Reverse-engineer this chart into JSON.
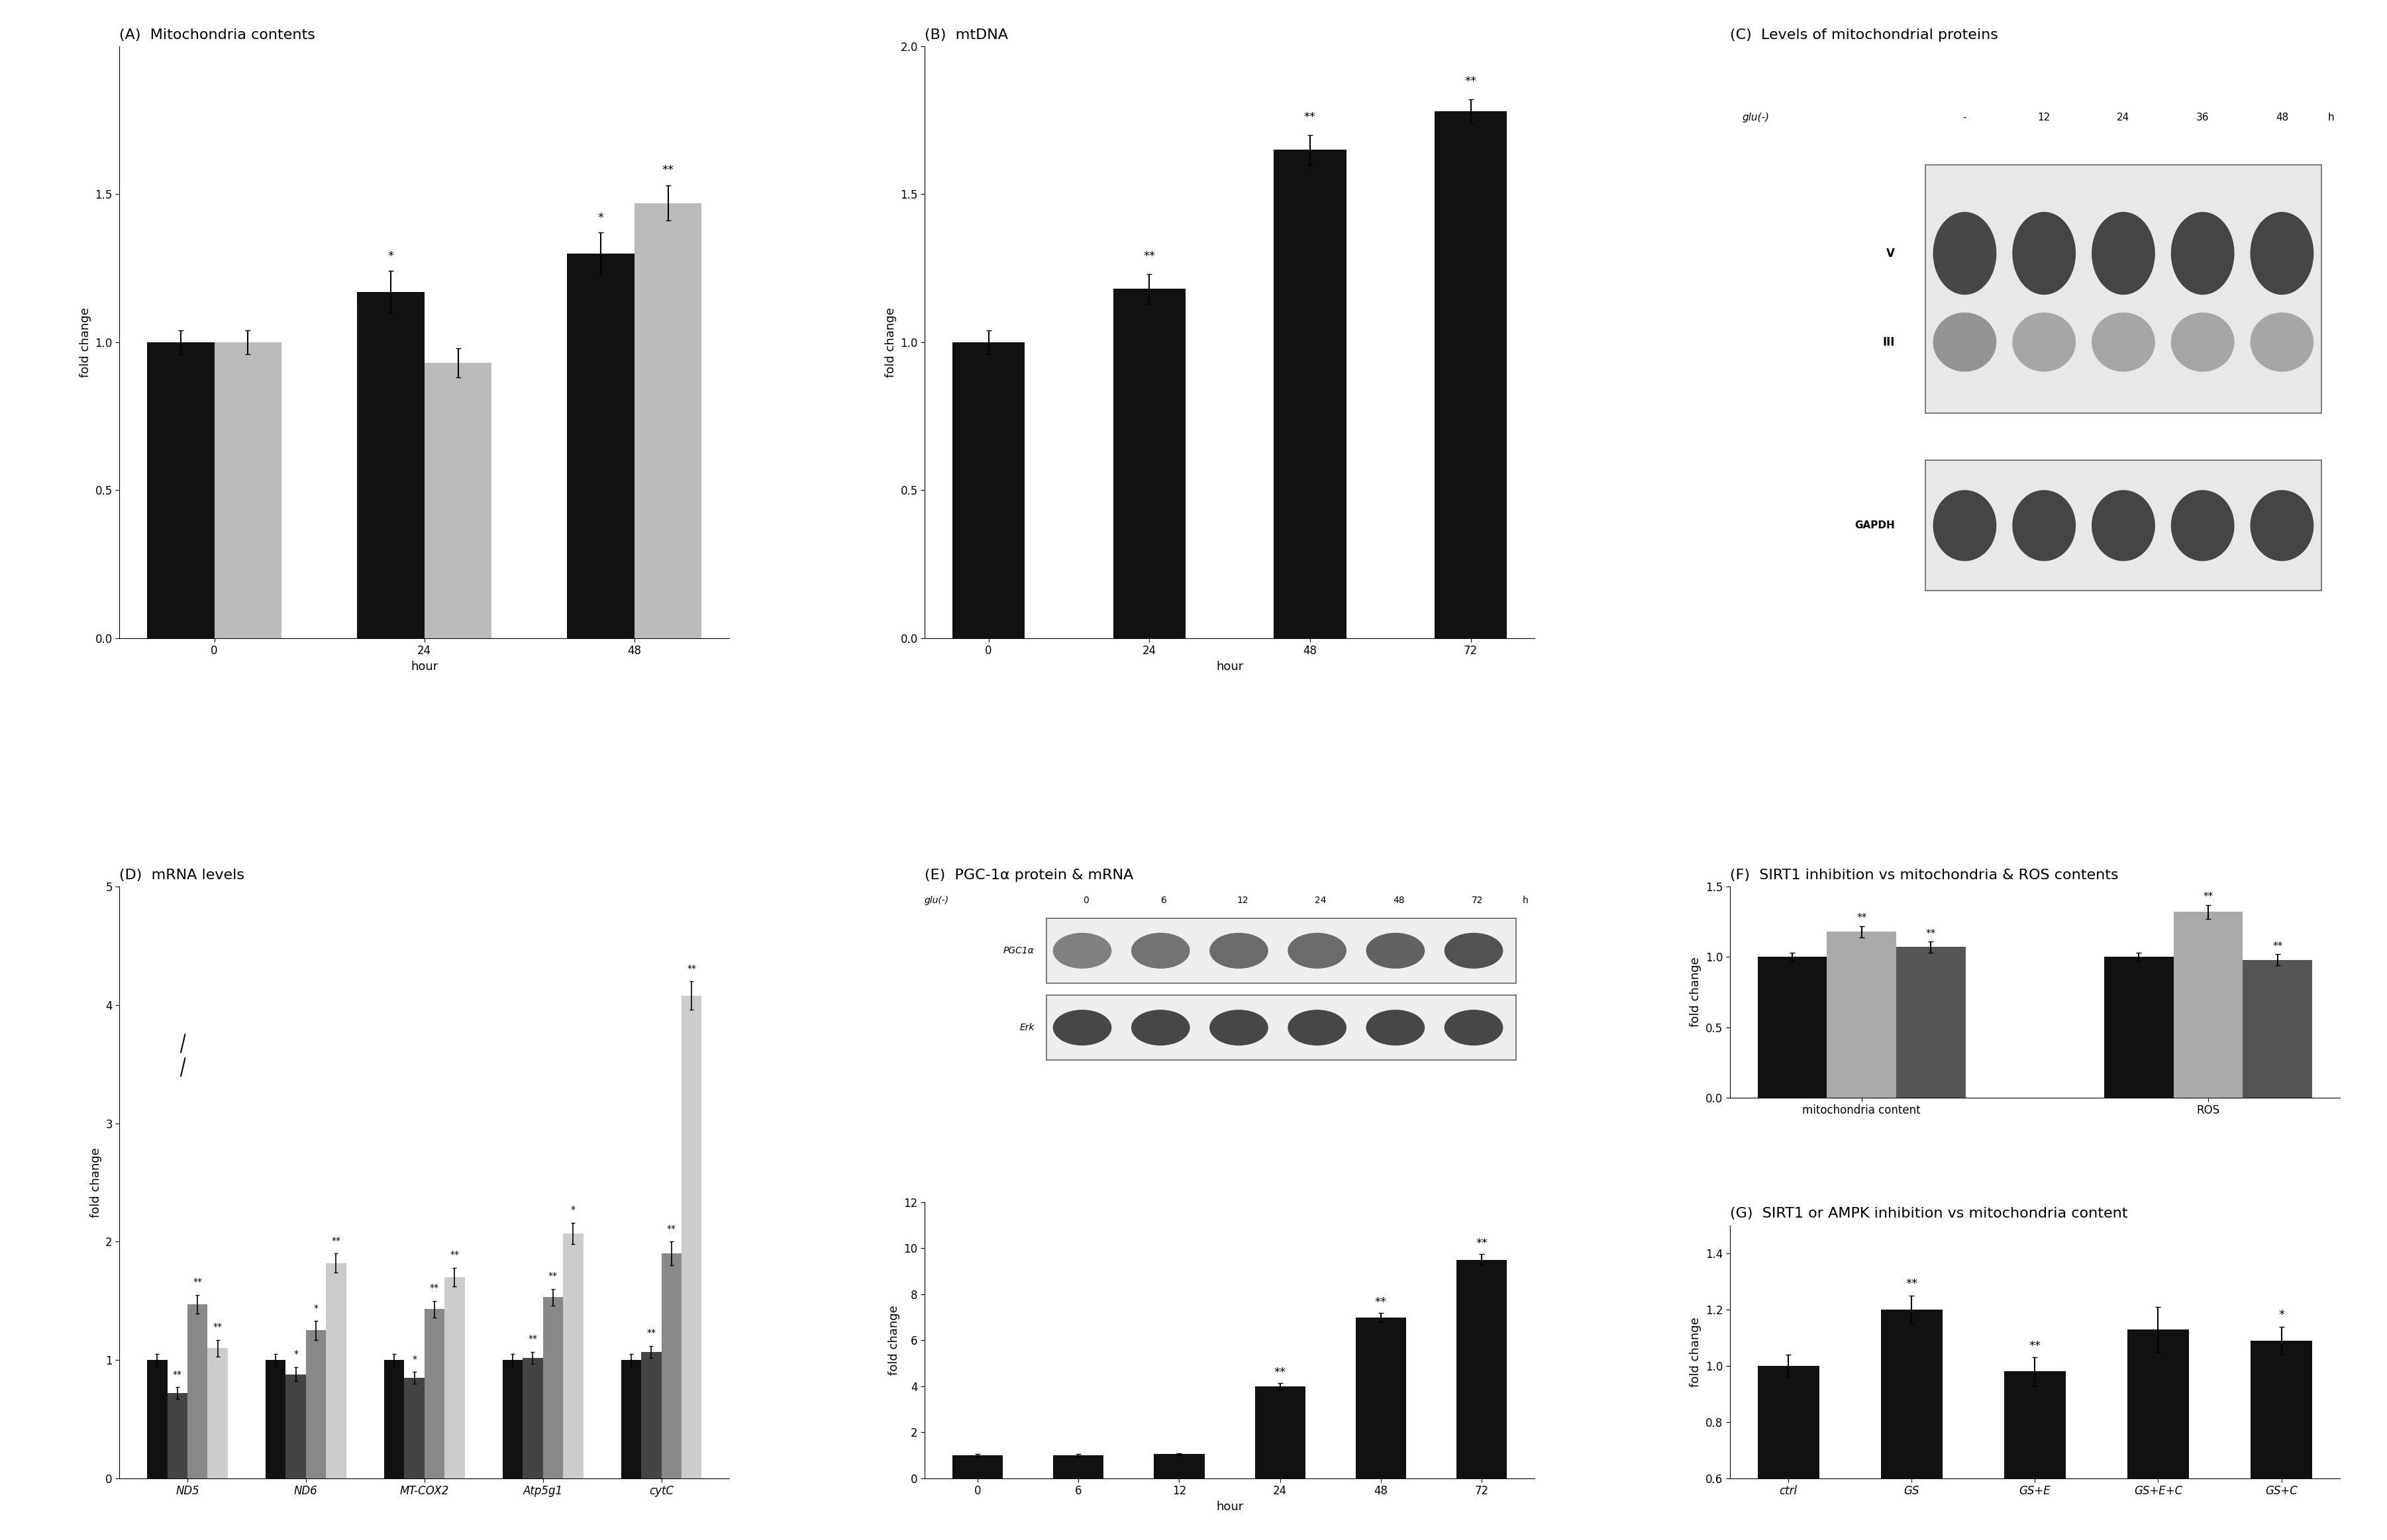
{
  "figsize": [
    36.05,
    23.26
  ],
  "background_color": "#ffffff",
  "panel_A": {
    "title": "(A)  Mitochondria contents",
    "xlabel": "hour",
    "ylabel": "fold change",
    "ylim": [
      0.0,
      2.0
    ],
    "yticks": [
      0.0,
      0.5,
      1.0,
      1.5
    ],
    "xtick_labels": [
      "0",
      "24",
      "48"
    ],
    "black_bars": [
      1.0,
      1.17,
      1.3
    ],
    "gray_bars": [
      1.0,
      0.93,
      1.47
    ],
    "black_errors": [
      0.04,
      0.07,
      0.07
    ],
    "gray_errors": [
      0.04,
      0.05,
      0.06
    ],
    "significance_black": [
      "",
      "*",
      "*"
    ],
    "significance_gray": [
      "",
      "",
      "**"
    ]
  },
  "panel_B": {
    "title": "(B)  mtDNA",
    "xlabel": "hour",
    "ylabel": "fold change",
    "ylim": [
      0.0,
      2.0
    ],
    "yticks": [
      0.0,
      0.5,
      1.0,
      1.5,
      2.0
    ],
    "xtick_labels": [
      "0",
      "24",
      "48",
      "72"
    ],
    "black_bars": [
      1.0,
      1.18,
      1.65,
      1.78
    ],
    "black_errors": [
      0.04,
      0.05,
      0.05,
      0.04
    ],
    "significance": [
      "",
      "**",
      "**",
      "**"
    ]
  },
  "panel_C": {
    "title": "(C)  Levels of mitochondrial proteins",
    "header_labels": [
      "glu(-)",
      "-",
      "12",
      "24",
      "36",
      "48",
      "h"
    ],
    "rows": [
      {
        "label": "V",
        "band_color": 0.3,
        "intensities": [
          0.3,
          0.28,
          0.28,
          0.28,
          0.28,
          0.28
        ]
      },
      {
        "label": "III",
        "band_color": 0.55,
        "intensities": [
          0.55,
          0.6,
          0.62,
          0.65,
          0.65,
          0.65
        ]
      },
      {
        "label": "GAPDH",
        "band_color": 0.3,
        "intensities": [
          0.3,
          0.3,
          0.3,
          0.3,
          0.3,
          0.3
        ],
        "separate": true
      }
    ]
  },
  "panel_D": {
    "title": "(D)  mRNA levels",
    "ylabel": "fold change",
    "ylim": [
      0.0,
      5.0
    ],
    "yticks": [
      0,
      1,
      2,
      3,
      4,
      5
    ],
    "genes": [
      "ND5",
      "ND6",
      "MT-COX2",
      "Atp5g1",
      "cytC"
    ],
    "bar_colors": [
      "#111111",
      "#444444",
      "#888888",
      "#cccccc"
    ],
    "values": {
      "ND5": [
        1.0,
        0.72,
        1.47,
        1.1
      ],
      "ND6": [
        1.0,
        0.88,
        1.25,
        1.82
      ],
      "MT-COX2": [
        1.0,
        0.85,
        1.43,
        1.7
      ],
      "Atp5g1": [
        1.0,
        1.02,
        1.53,
        2.07
      ],
      "cytC": [
        1.0,
        1.07,
        1.9,
        4.08
      ]
    },
    "errors": {
      "ND5": [
        0.05,
        0.05,
        0.08,
        0.07
      ],
      "ND6": [
        0.05,
        0.06,
        0.08,
        0.08
      ],
      "MT-COX2": [
        0.05,
        0.05,
        0.07,
        0.08
      ],
      "Atp5g1": [
        0.05,
        0.05,
        0.07,
        0.09
      ],
      "cytC": [
        0.05,
        0.05,
        0.1,
        0.12
      ]
    },
    "significance": {
      "ND5": [
        "",
        "**",
        "**",
        "**"
      ],
      "ND6": [
        "",
        "*",
        "*",
        "**"
      ],
      "MT-COX2": [
        "",
        "*",
        "**",
        "**"
      ],
      "Atp5g1": [
        "",
        "**",
        "**",
        "*"
      ],
      "cytC": [
        "",
        "**",
        "**",
        "**"
      ]
    }
  },
  "panel_E_blot": {
    "title": "(E)  PGC-1α protein & mRNA",
    "header_labels": [
      "glu(-)",
      "0",
      "6",
      "12",
      "24",
      "48",
      "72",
      "h"
    ],
    "rows": [
      {
        "label": "PGC1α",
        "intensities": [
          0.5,
          0.45,
          0.42,
          0.42,
          0.38,
          0.32
        ]
      },
      {
        "label": "Erk",
        "intensities": [
          0.28,
          0.28,
          0.28,
          0.28,
          0.28,
          0.28
        ]
      }
    ]
  },
  "panel_E_bar": {
    "xlabel": "hour",
    "ylabel": "fold change",
    "ylim": [
      0.0,
      12.0
    ],
    "yticks": [
      0,
      2,
      4,
      6,
      8,
      10,
      12
    ],
    "xtick_labels": [
      "0",
      "6",
      "12",
      "24",
      "48",
      "72"
    ],
    "black_bars": [
      1.0,
      1.0,
      1.05,
      4.0,
      7.0,
      9.5
    ],
    "black_errors": [
      0.05,
      0.05,
      0.05,
      0.15,
      0.2,
      0.25
    ],
    "significance": [
      "",
      "",
      "",
      "**",
      "**",
      "**"
    ]
  },
  "panel_F": {
    "title": "(F)  SIRT1 inhibition vs mitochondria & ROS contents",
    "ylabel": "fold change",
    "ylim": [
      0.0,
      1.5
    ],
    "yticks": [
      0.0,
      0.5,
      1.0,
      1.5
    ],
    "group_labels": [
      "mitochondria content",
      "ROS"
    ],
    "bar_colors": [
      "#111111",
      "#aaaaaa",
      "#555555"
    ],
    "values": {
      "mitochondria content": [
        1.0,
        1.18,
        1.07
      ],
      "ROS": [
        1.0,
        1.32,
        0.98
      ]
    },
    "errors": {
      "mitochondria content": [
        0.03,
        0.04,
        0.04
      ],
      "ROS": [
        0.03,
        0.05,
        0.04
      ]
    },
    "significance": {
      "mitochondria content": [
        "",
        "**",
        "**"
      ],
      "ROS": [
        "",
        "**",
        "**"
      ]
    }
  },
  "panel_G": {
    "title": "(G)  SIRT1 or AMPK inhibition vs mitochondria content",
    "ylabel": "fold change",
    "ylim": [
      0.6,
      1.5
    ],
    "yticks": [
      0.6,
      0.8,
      1.0,
      1.2,
      1.4
    ],
    "xtick_labels": [
      "ctrl",
      "GS",
      "GS+E",
      "GS+E+C",
      "GS+C"
    ],
    "black_bars": [
      1.0,
      1.2,
      0.98,
      1.13,
      1.09
    ],
    "black_errors": [
      0.04,
      0.05,
      0.05,
      0.08,
      0.05
    ],
    "significance": [
      "",
      "**",
      "**",
      "",
      "*"
    ]
  },
  "font_sizes": {
    "title": 16,
    "axis_label": 13,
    "tick_label": 12,
    "significance": 13
  }
}
